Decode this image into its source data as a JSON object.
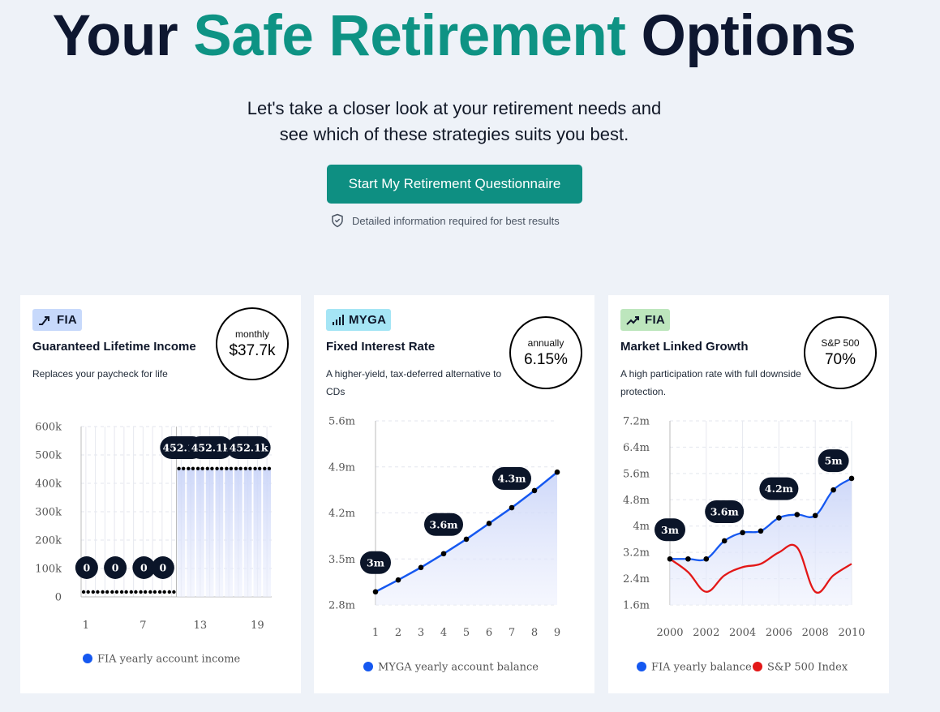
{
  "hero": {
    "title_start": "Your ",
    "title_accent": "Safe Retirement",
    "title_end": " Options",
    "subtitle_line1": "Let's take a closer look at your retirement needs and",
    "subtitle_line2": "see which of these strategies suits you best.",
    "cta_label": "Start My Retirement Questionnaire",
    "note": "Detailed information required for best results"
  },
  "cards": [
    {
      "badge": "FIA",
      "badge_icon": "trend-up-icon",
      "badge_color": "#c7d9fb",
      "title": "Guaranteed Lifetime Income",
      "description": "Replaces your paycheck for life",
      "metric_label": "monthly",
      "metric_value": "$37.7k"
    },
    {
      "badge": "MYGA",
      "badge_icon": "bar-chart-icon",
      "badge_color": "#a5e5f5",
      "title": "Fixed Interest Rate",
      "description": "A higher-yield, tax-deferred alternative to CDs",
      "metric_label": "annually",
      "metric_value": "6.15%"
    },
    {
      "badge": "FIA",
      "badge_icon": "line-chart-icon",
      "badge_color": "#bde6bd",
      "title": "Market Linked Growth",
      "description": "A high participation rate with full downside protection.",
      "metric_label": "S&P 500",
      "metric_value": "70%"
    }
  ],
  "chart_data": [
    {
      "type": "bar",
      "x": [
        1,
        2,
        3,
        4,
        5,
        6,
        7,
        8,
        9,
        10,
        11,
        12,
        13,
        14,
        15,
        16,
        17,
        18,
        19,
        20
      ],
      "xticks": [
        "1",
        "7",
        "13",
        "19"
      ],
      "yticks": [
        "0",
        "100k",
        "200k",
        "300k",
        "400k",
        "500k",
        "600k"
      ],
      "ylim": [
        0,
        600000
      ],
      "series": [
        {
          "name": "FIA yearly account income",
          "color": "#1558f0",
          "values": [
            0,
            0,
            0,
            0,
            0,
            0,
            0,
            0,
            0,
            0,
            452100,
            452100,
            452100,
            452100,
            452100,
            452100,
            452100,
            452100,
            452100,
            452100
          ]
        }
      ],
      "labels": [
        {
          "x": 1,
          "text": "0"
        },
        {
          "x": 4,
          "text": "0"
        },
        {
          "x": 7,
          "text": "0"
        },
        {
          "x": 9,
          "text": "0"
        },
        {
          "x": 11,
          "text": "452.1k"
        },
        {
          "x": 14,
          "text": "452.1k"
        },
        {
          "x": 18,
          "text": "452.1k"
        }
      ],
      "legend": "bottom"
    },
    {
      "type": "line",
      "x": [
        1,
        2,
        3,
        4,
        5,
        6,
        7,
        8,
        9
      ],
      "xticks": [
        "1",
        "2",
        "3",
        "4",
        "5",
        "6",
        "7",
        "8",
        "9"
      ],
      "yticks": [
        "2.8m",
        "3.5m",
        "4.2m",
        "4.9m",
        "5.6m"
      ],
      "ylim": [
        2.8,
        5.6
      ],
      "series": [
        {
          "name": "MYGA yearly account balance",
          "color": "#1558f0",
          "values": [
            3.0,
            3.18,
            3.37,
            3.58,
            3.8,
            4.04,
            4.28,
            4.54,
            4.82
          ]
        }
      ],
      "labels": [
        {
          "x": 1,
          "text": "3m"
        },
        {
          "x": 4,
          "text": "3.6m"
        },
        {
          "x": 7,
          "text": "4.3m"
        }
      ],
      "legend": "bottom"
    },
    {
      "type": "line",
      "x": [
        2000,
        2001,
        2002,
        2003,
        2004,
        2005,
        2006,
        2007,
        2008,
        2009,
        2010
      ],
      "xticks": [
        "2000",
        "2002",
        "2004",
        "2006",
        "2008",
        "2010"
      ],
      "yticks": [
        "1.6m",
        "2.4m",
        "3.2m",
        "4m",
        "4.8m",
        "5.6m",
        "6.4m",
        "7.2m"
      ],
      "ylim": [
        1.6,
        7.2
      ],
      "series": [
        {
          "name": "FIA yearly balance",
          "color": "#1558f0",
          "values": [
            3.0,
            3.0,
            3.0,
            3.55,
            3.8,
            3.85,
            4.25,
            4.35,
            4.32,
            5.1,
            5.45
          ]
        },
        {
          "name": "S&P 500 Index",
          "color": "#e31717",
          "values": [
            3.0,
            2.6,
            2.0,
            2.5,
            2.75,
            2.85,
            3.2,
            3.35,
            2.0,
            2.5,
            2.85
          ]
        }
      ],
      "labels": [
        {
          "x": 2000,
          "text": "3m"
        },
        {
          "x": 2003,
          "text": "3.6m"
        },
        {
          "x": 2006,
          "text": "4.2m"
        },
        {
          "x": 2009,
          "text": "5m"
        }
      ],
      "legend": "bottom"
    }
  ]
}
